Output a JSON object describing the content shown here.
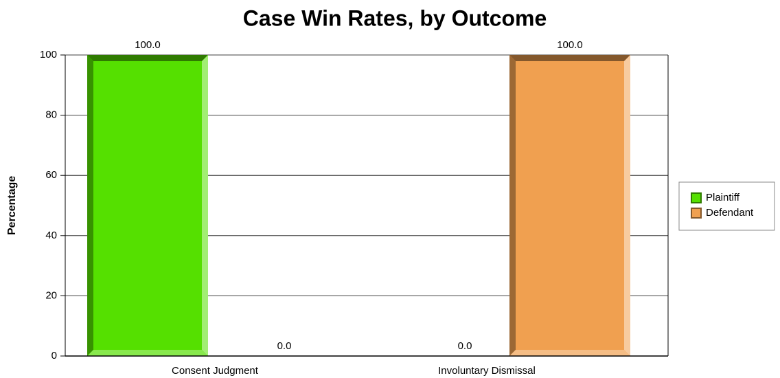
{
  "chart_data": {
    "type": "bar",
    "title": "Case Win Rates, by Outcome",
    "y_label": "Percentage",
    "categories": [
      "Consent Judgment",
      "Involuntary Dismissal"
    ],
    "series": [
      {
        "name": "Plaintiff",
        "color": "#55e000",
        "values": [
          100,
          0
        ],
        "value_labels": [
          "100.0",
          "0.0"
        ]
      },
      {
        "name": "Defendant",
        "color": "#f0a050",
        "values": [
          0,
          100
        ],
        "value_labels": [
          "0.0",
          "100.0"
        ]
      }
    ],
    "ylim": [
      0,
      100
    ],
    "yticks": [
      0,
      20,
      40,
      60,
      80,
      100
    ],
    "grid": true,
    "legend": "right"
  }
}
